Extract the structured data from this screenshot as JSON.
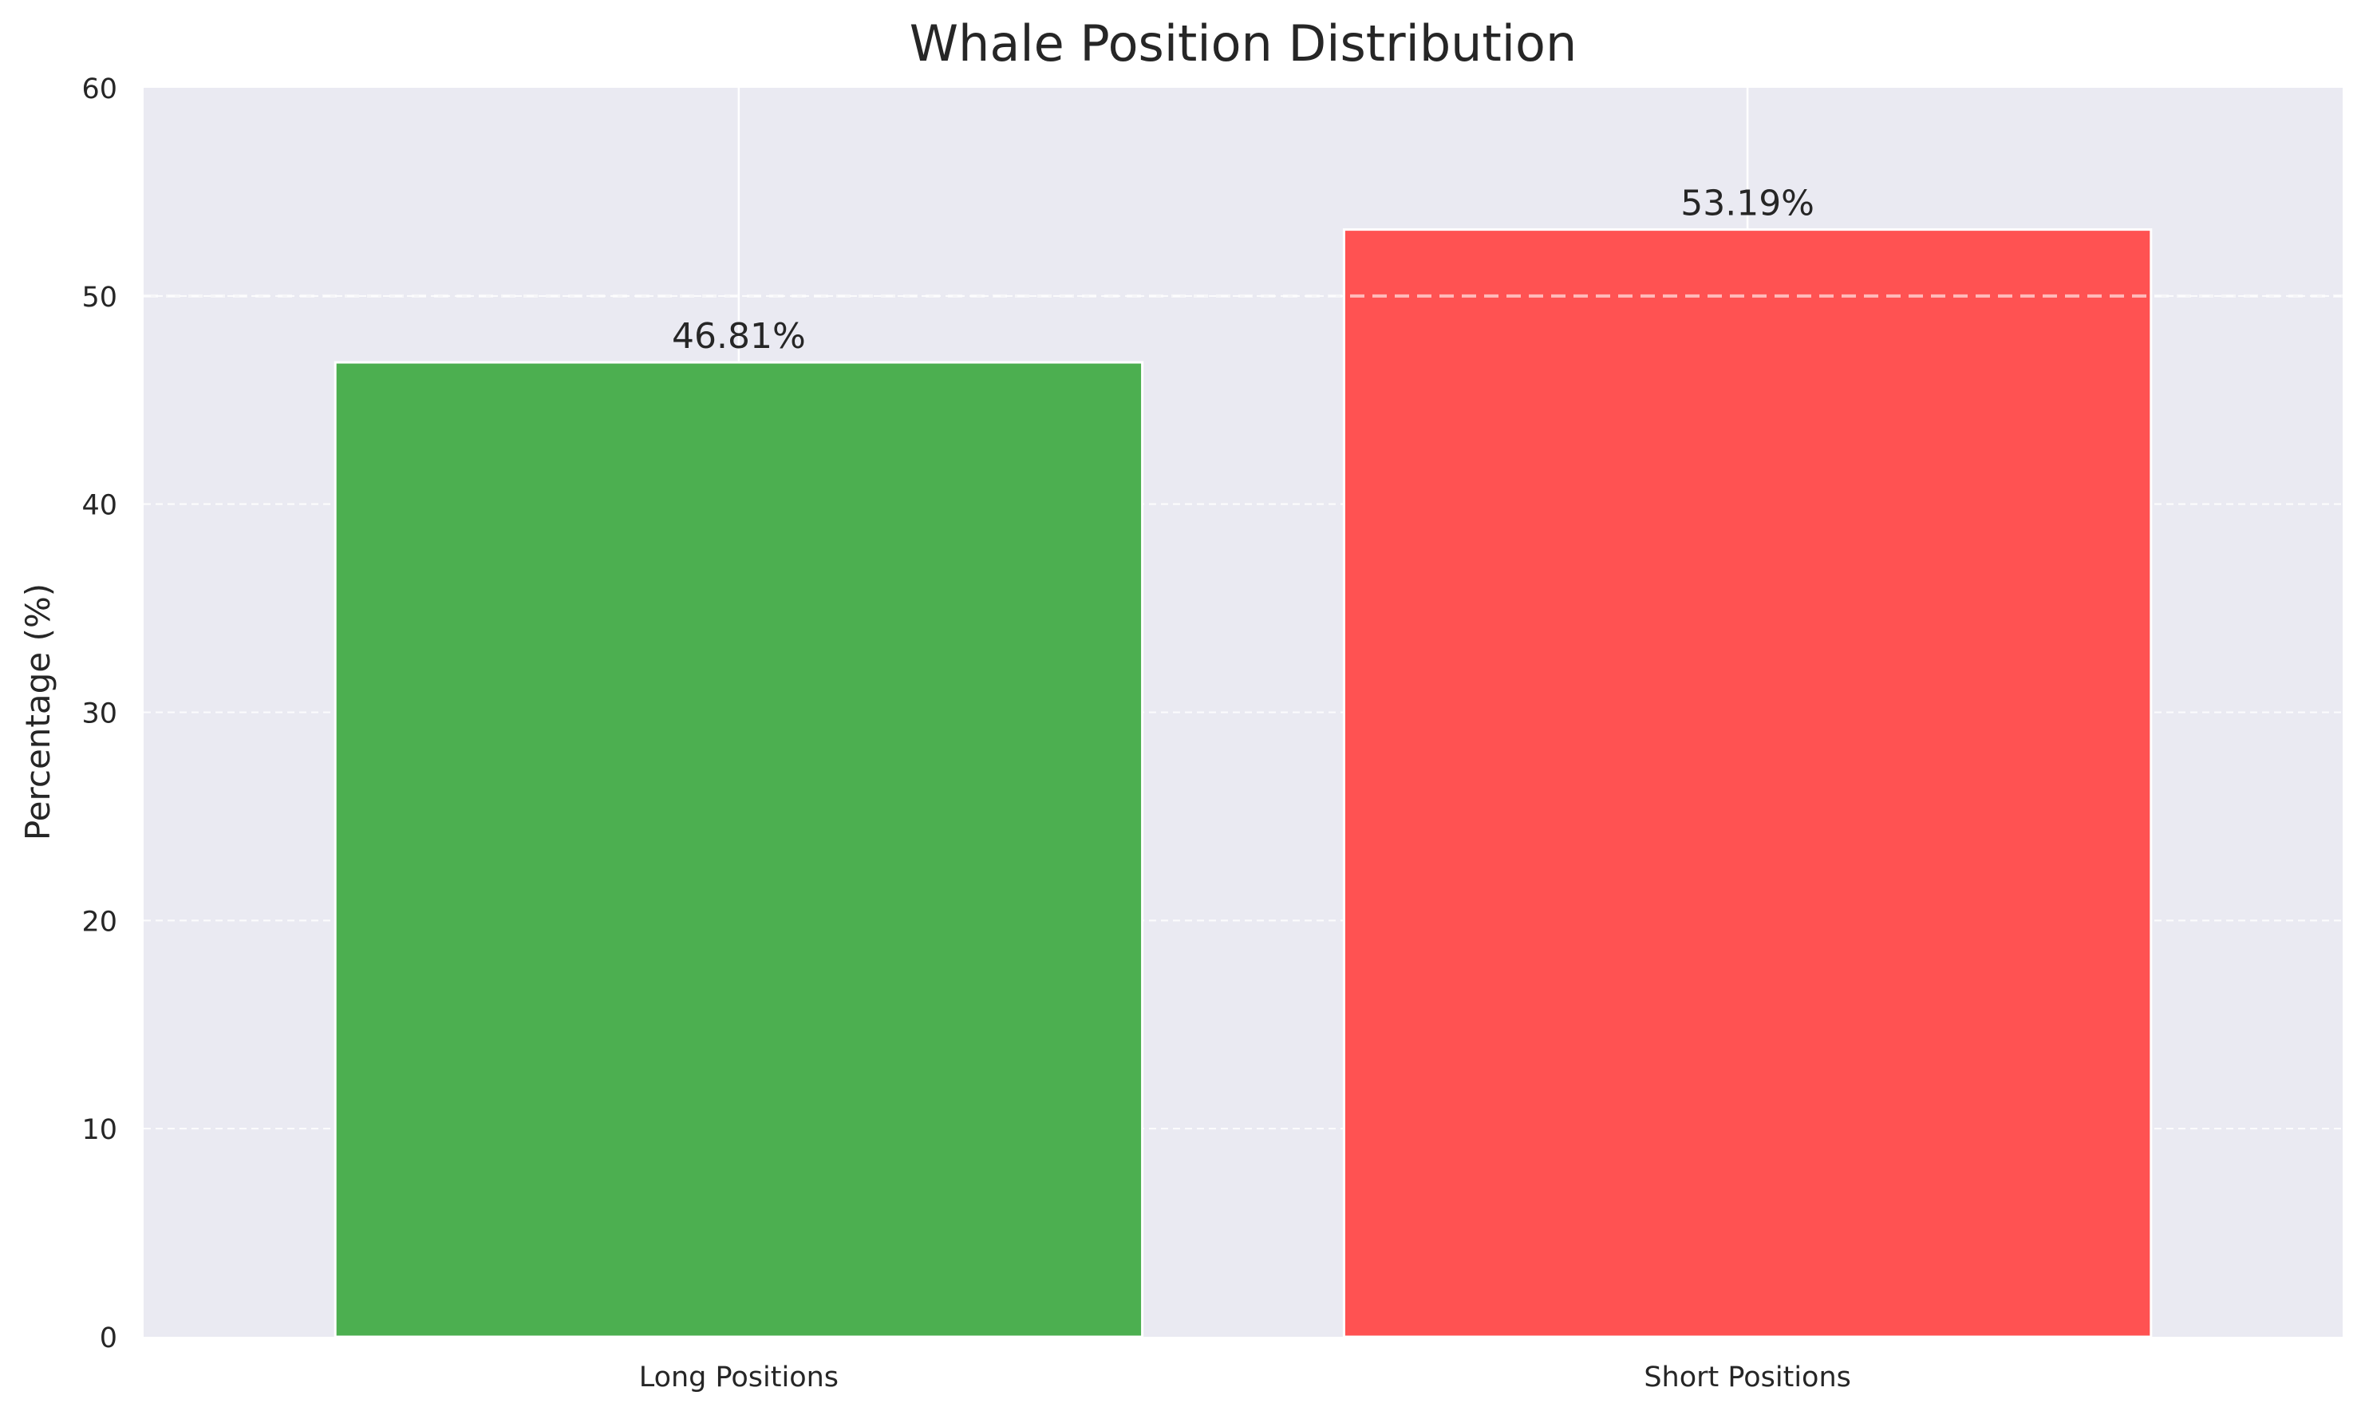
{
  "chart_data": {
    "type": "bar",
    "title": "Whale Position Distribution",
    "xlabel": "",
    "ylabel": "Percentage (%)",
    "categories": [
      "Long Positions",
      "Short Positions"
    ],
    "values": [
      46.81,
      53.19
    ],
    "value_labels": [
      "46.81%",
      "53.19%"
    ],
    "colors": [
      "#4caf50",
      "#ff5252"
    ],
    "ylim": [
      0,
      60
    ],
    "yticks": [
      0,
      10,
      20,
      30,
      40,
      50,
      60
    ],
    "reference_line": {
      "y": 50,
      "style": "dashed"
    },
    "grid": true,
    "background": "#eaeaf2",
    "legend": "none"
  }
}
